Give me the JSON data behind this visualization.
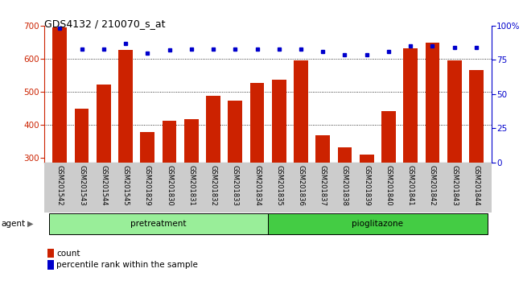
{
  "title": "GDS4132 / 210070_s_at",
  "samples": [
    "GSM201542",
    "GSM201543",
    "GSM201544",
    "GSM201545",
    "GSM201829",
    "GSM201830",
    "GSM201831",
    "GSM201832",
    "GSM201833",
    "GSM201834",
    "GSM201835",
    "GSM201836",
    "GSM201837",
    "GSM201838",
    "GSM201839",
    "GSM201840",
    "GSM201841",
    "GSM201842",
    "GSM201843",
    "GSM201844"
  ],
  "counts": [
    695,
    450,
    522,
    627,
    378,
    412,
    418,
    487,
    474,
    528,
    538,
    595,
    370,
    332,
    310,
    443,
    632,
    648,
    595,
    567
  ],
  "percentiles": [
    98,
    83,
    83,
    87,
    80,
    82,
    83,
    83,
    83,
    83,
    83,
    83,
    81,
    79,
    79,
    81,
    85,
    85,
    84,
    84
  ],
  "pretreatment_count": 10,
  "pioglitazone_count": 10,
  "bar_color": "#cc2200",
  "dot_color": "#0000cc",
  "ymin": 287,
  "ymax": 700,
  "y_ticks": [
    300,
    400,
    500,
    600,
    700
  ],
  "y2_ticks": [
    0,
    25,
    50,
    75,
    100
  ],
  "y2_tick_labels": [
    "0",
    "25",
    "50",
    "75",
    "100%"
  ],
  "grid_values": [
    400,
    500,
    600
  ],
  "pretreatment_label": "pretreatment",
  "pioglitazone_label": "pioglitazone",
  "agent_label": "agent",
  "legend_count_label": "count",
  "legend_pct_label": "percentile rank within the sample",
  "pretreatment_color": "#99ee99",
  "pioglitazone_color": "#44cc44",
  "bg_color": "#ffffff",
  "tick_label_area_color": "#cccccc",
  "title_fontsize": 9,
  "legend_fontsize": 7.5
}
